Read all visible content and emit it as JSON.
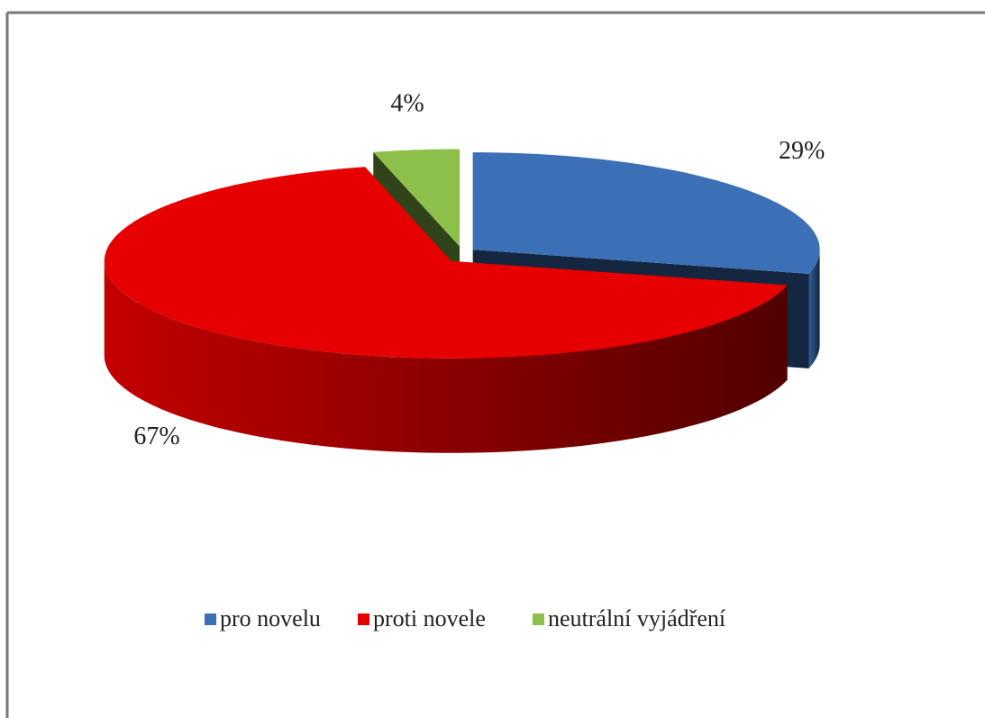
{
  "chart_data": {
    "type": "pie",
    "categories": [
      "pro novelu",
      "proti novele",
      "neutrální vyjádření"
    ],
    "values": [
      29,
      67,
      4
    ],
    "value_labels": [
      "29%",
      "67%",
      "4%"
    ],
    "colors": [
      "#3b6fb6",
      "#e60000",
      "#8cc04a"
    ],
    "legend": "bottom"
  }
}
